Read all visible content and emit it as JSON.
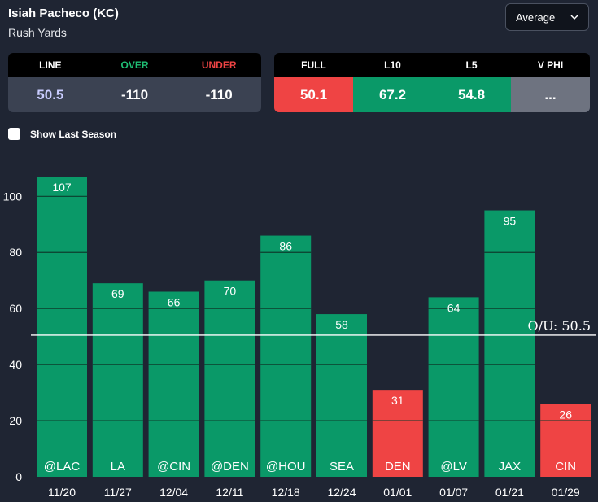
{
  "player": {
    "name": "Isiah Pacheco (KC)",
    "stat": "Rush Yards"
  },
  "dropdown": {
    "selected": "Average"
  },
  "line_panel": {
    "headers": [
      "LINE",
      "OVER",
      "UNDER"
    ],
    "values": [
      "50.5",
      "-110",
      "-110"
    ]
  },
  "avg_panel": {
    "headers": [
      "FULL",
      "L10",
      "L5",
      "V PHI"
    ],
    "values": [
      "50.1",
      "67.2",
      "54.8",
      "..."
    ],
    "colors": [
      "#ef4444",
      "#0a9968",
      "#0a9968",
      "#6e7380"
    ]
  },
  "show_last_season": {
    "label": "Show Last Season",
    "checked": false
  },
  "colors": {
    "over": "#0a9968",
    "under": "#ef4444"
  },
  "chart_data": {
    "type": "bar",
    "categories": [
      "11/20",
      "11/27",
      "12/04",
      "12/11",
      "12/18",
      "12/24",
      "01/01",
      "01/07",
      "01/21",
      "01/29"
    ],
    "opponents": [
      "@LAC",
      "LA",
      "@CIN",
      "@DEN",
      "@HOU",
      "SEA",
      "DEN",
      "@LV",
      "JAX",
      "CIN"
    ],
    "values": [
      107,
      69,
      66,
      70,
      86,
      58,
      31,
      64,
      95,
      26
    ],
    "ylim": [
      0,
      110
    ],
    "yticks": [
      0,
      20,
      40,
      60,
      80,
      100
    ],
    "line_value": 50.5,
    "line_label": "O/U: 50.5",
    "title": "",
    "xlabel": "",
    "ylabel": ""
  }
}
